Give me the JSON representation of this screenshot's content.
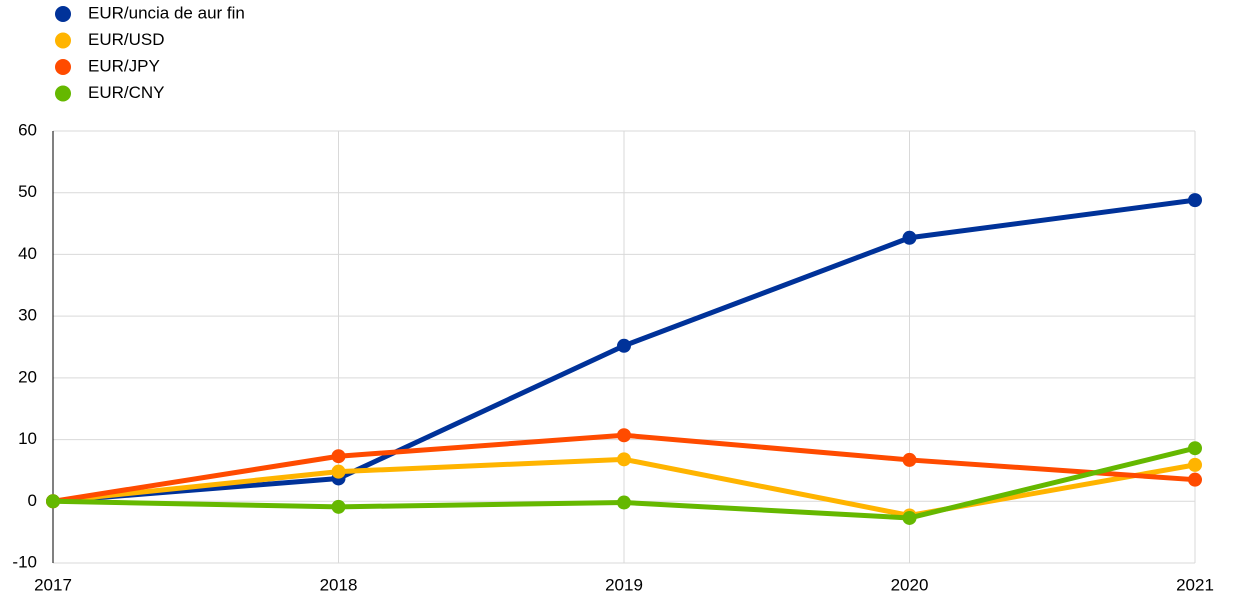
{
  "chart_data": {
    "type": "line",
    "categories": [
      "2017",
      "2018",
      "2019",
      "2020",
      "2021"
    ],
    "series": [
      {
        "name": "EUR/uncia de aur fin",
        "color": "#003299",
        "values": [
          0,
          3.7,
          25.2,
          42.7,
          48.8
        ]
      },
      {
        "name": "EUR/USD",
        "color": "#ffb400",
        "values": [
          0,
          4.8,
          6.8,
          -2.3,
          5.9
        ]
      },
      {
        "name": "EUR/JPY",
        "color": "#ff4b00",
        "values": [
          0,
          7.3,
          10.7,
          6.7,
          3.5
        ]
      },
      {
        "name": "EUR/CNY",
        "color": "#65b800",
        "values": [
          0,
          -0.9,
          -0.2,
          -2.7,
          8.6
        ]
      }
    ],
    "ylim": [
      -10,
      60
    ],
    "yticks": [
      -10,
      0,
      10,
      20,
      30,
      40,
      50,
      60
    ],
    "grid": true,
    "legend": "top-left"
  }
}
